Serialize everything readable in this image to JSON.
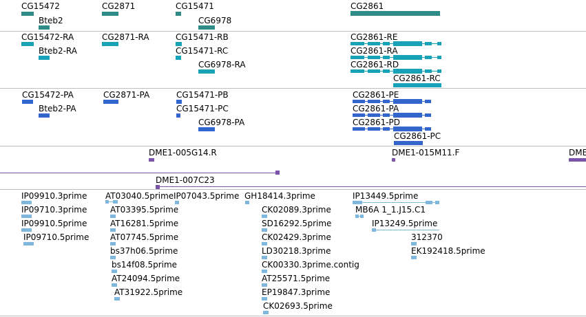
{
  "colors": {
    "gene": "#2e8b86",
    "transcript": "#17a2b8",
    "protein": "#3366cc",
    "clone": "#7b53a8",
    "est": "#7fb6dc",
    "separator": "#c0c0c0"
  },
  "tracks": {
    "genes": {
      "labels": [
        "CG15472",
        "Bteb2",
        "CG2871",
        "CG15471",
        "CG6978",
        "CG2861"
      ]
    },
    "transcripts": {
      "labels": [
        "CG15472-RA",
        "Bteb2-RA",
        "CG2871-RA",
        "CG15471-RB",
        "CG15471-RC",
        "CG6978-RA",
        "CG2861-RE",
        "CG2861-RA",
        "CG2861-RD",
        "CG2861-RC"
      ]
    },
    "proteins": {
      "labels": [
        "CG15472-PA",
        "Bteb2-PA",
        "CG2871-PA",
        "CG15471-PB",
        "CG15471-PC",
        "CG6978-PA",
        "CG2861-PE",
        "CG2861-PA",
        "CG2861-PD",
        "CG2861-PC"
      ]
    },
    "clones": {
      "labels": [
        "DME1-005G14.R",
        "DME1-015M11.F",
        "DME",
        "DME1-007C23"
      ]
    },
    "ests": {
      "labels": [
        "IP09910.3prime",
        "IP09710.3prime",
        "IP09910.5prime",
        "IP09710.5prime",
        "AT03040.5prime",
        "AT03395.5prime",
        "AT16281.5prime",
        "AT07745.5prime",
        "bs37h06.5prime",
        "bs14f08.5prime",
        "AT24094.5prime",
        "AT31922.5prime",
        "IP07043.5prime",
        "GH18414.3prime",
        "CK02089.3prime",
        "SD16292.5prime",
        "CK02429.3prime",
        "LD30218.3prime",
        "CK00330.3prime.contig",
        "AT25571.5prime",
        "EP19847.3prime",
        "CK02693.5prime",
        "IP13449.5prime",
        "MB6A 1_1.J15.C1",
        "IP13249.5prime",
        "312370",
        "EK192418.5prime"
      ]
    }
  }
}
